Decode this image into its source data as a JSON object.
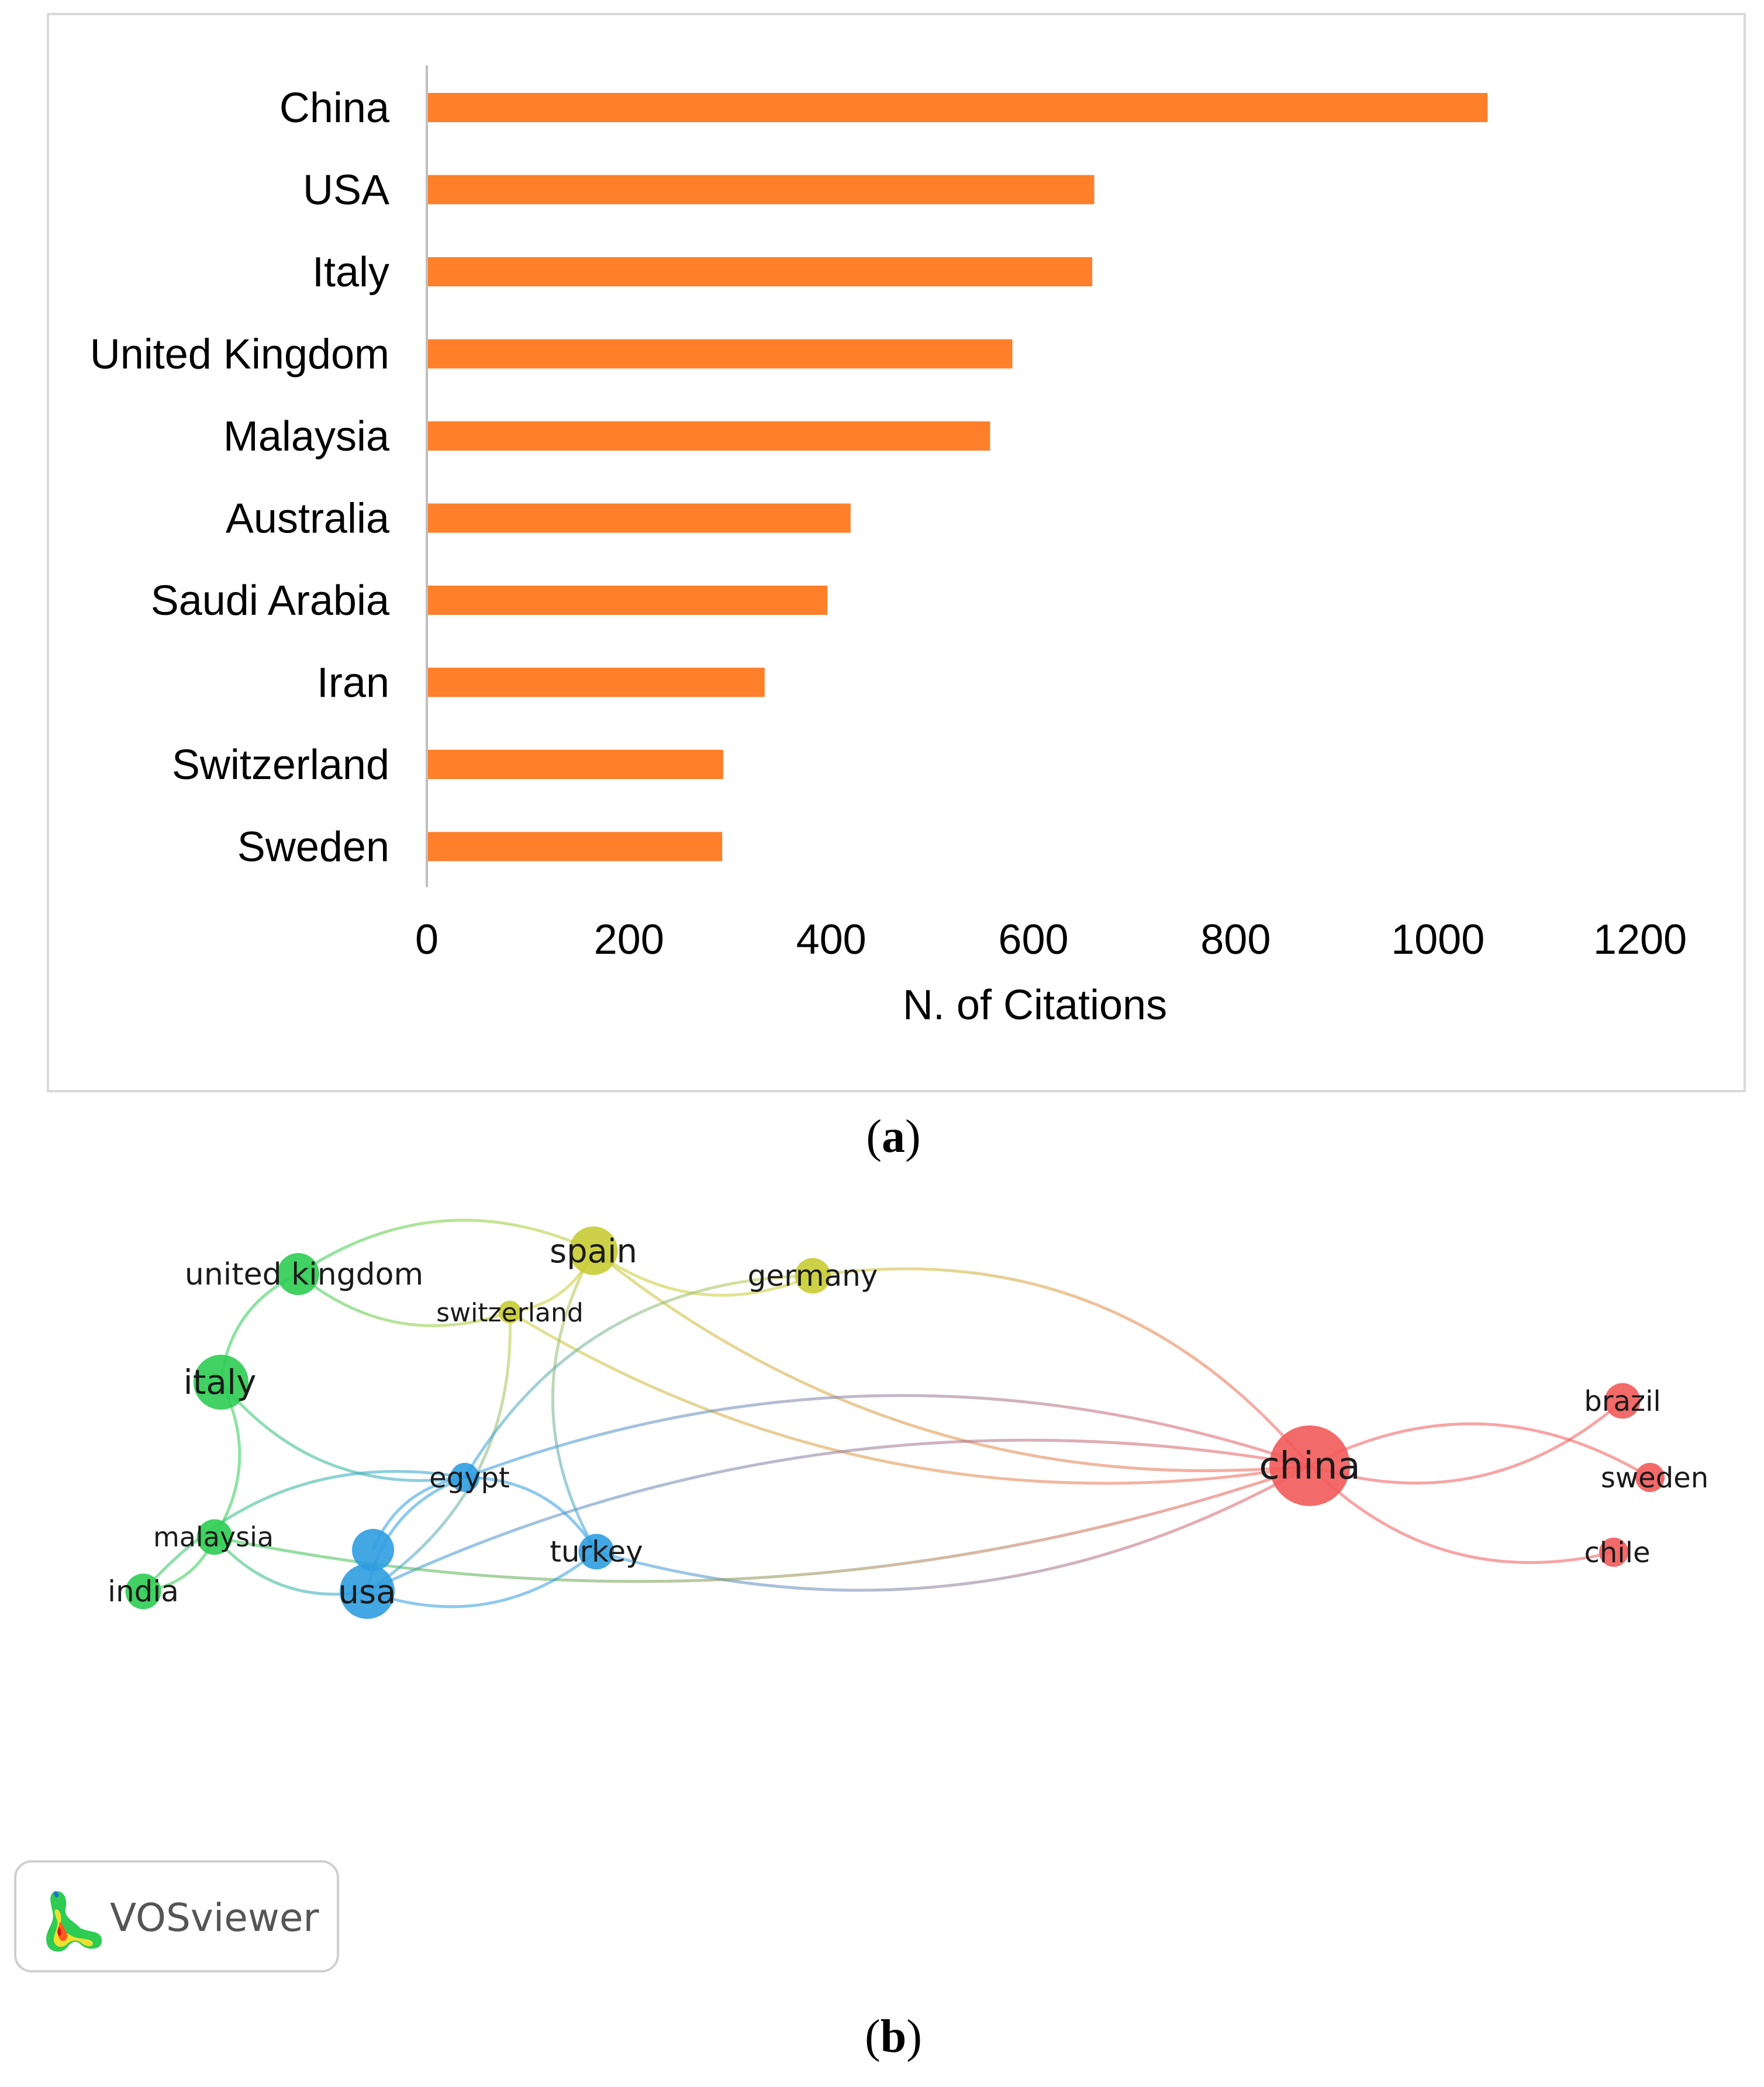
{
  "chart_data": [
    {
      "type": "bar",
      "orientation": "horizontal",
      "categories": [
        "China",
        "USA",
        "Italy",
        "United Kingdom",
        "Malaysia",
        "Australia",
        "Saudi Arabia",
        "Iran",
        "Switzerland",
        "Sweden"
      ],
      "values": [
        1048,
        659,
        657,
        578,
        556,
        418,
        395,
        333,
        292,
        291
      ],
      "xlabel": "N. of Citations",
      "xlim": [
        0,
        1200
      ],
      "xticks": [
        0,
        200,
        400,
        600,
        800,
        1000,
        1200
      ],
      "bar_color": "#ff7f2a",
      "grid": false
    },
    {
      "type": "network",
      "tool": "VOSviewer",
      "nodes": [
        {
          "id": "china",
          "label": "china",
          "cluster": "red",
          "weight": 10
        },
        {
          "id": "brazil",
          "label": "brazil",
          "cluster": "red",
          "weight": 3
        },
        {
          "id": "sweden",
          "label": "sweden",
          "cluster": "red",
          "weight": 2
        },
        {
          "id": "chile",
          "label": "chile",
          "cluster": "red",
          "weight": 2
        },
        {
          "id": "united kingdom",
          "label": "united kingdom",
          "cluster": "green",
          "weight": 4
        },
        {
          "id": "italy",
          "label": "italy",
          "cluster": "green",
          "weight": 6
        },
        {
          "id": "malaysia",
          "label": "malaysia",
          "cluster": "green",
          "weight": 3
        },
        {
          "id": "india",
          "label": "india",
          "cluster": "green",
          "weight": 3
        },
        {
          "id": "spain",
          "label": "spain",
          "cluster": "yellow",
          "weight": 5
        },
        {
          "id": "germany",
          "label": "germany",
          "cluster": "yellow",
          "weight": 3
        },
        {
          "id": "switzerland",
          "label": "switzerland",
          "cluster": "yellow",
          "weight": 1
        },
        {
          "id": "egypt",
          "label": "egypt",
          "cluster": "blue",
          "weight": 2
        },
        {
          "id": "unlabeled",
          "label": "",
          "cluster": "blue",
          "weight": 4
        },
        {
          "id": "usa",
          "label": "usa",
          "cluster": "blue",
          "weight": 6
        },
        {
          "id": "turkey",
          "label": "turkey",
          "cluster": "blue",
          "weight": 3
        }
      ],
      "edges": [
        [
          "china",
          "brazil"
        ],
        [
          "china",
          "sweden"
        ],
        [
          "china",
          "chile"
        ],
        [
          "china",
          "spain"
        ],
        [
          "china",
          "germany"
        ],
        [
          "china",
          "switzerland"
        ],
        [
          "china",
          "egypt"
        ],
        [
          "china",
          "turkey"
        ],
        [
          "china",
          "usa"
        ],
        [
          "china",
          "malaysia"
        ],
        [
          "united kingdom",
          "italy"
        ],
        [
          "united kingdom",
          "spain"
        ],
        [
          "united kingdom",
          "switzerland"
        ],
        [
          "italy",
          "malaysia"
        ],
        [
          "italy",
          "egypt"
        ],
        [
          "malaysia",
          "india"
        ],
        [
          "malaysia",
          "usa"
        ],
        [
          "india",
          "egypt"
        ],
        [
          "spain",
          "germany"
        ],
        [
          "spain",
          "switzerland"
        ],
        [
          "spain",
          "turkey"
        ],
        [
          "switzerland",
          "usa"
        ],
        [
          "germany",
          "egypt"
        ],
        [
          "egypt",
          "turkey"
        ],
        [
          "egypt",
          "usa"
        ],
        [
          "unlabeled",
          "egypt"
        ],
        [
          "usa",
          "turkey"
        ]
      ],
      "cluster_colors": {
        "red": "#f25a5a",
        "green": "#2ecc52",
        "yellow": "#c8cc33",
        "blue": "#2f9de0"
      }
    }
  ],
  "panel_labels": {
    "a": "a",
    "b": "b"
  },
  "logo": {
    "text": "VOSviewer",
    "icon": "vosviewer-logo-icon"
  }
}
